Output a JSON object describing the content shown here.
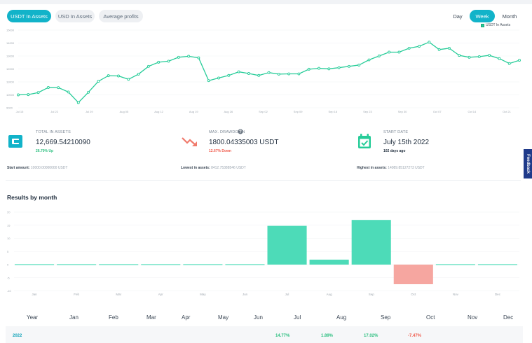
{
  "tabs": {
    "usdt_in_assets": "USDT In Assets",
    "usd_in_assets": "USD In Assets",
    "average_profits": "Average profits"
  },
  "periods": {
    "day": "Day",
    "week": "Week",
    "month": "Month"
  },
  "line_chart": {
    "legend": "USDT In Assets",
    "y_ticks": [
      "15000",
      "14000",
      "13000",
      "12000",
      "11000",
      "10000",
      "9000"
    ],
    "x_ticks": [
      "Jul 15",
      "Jul 22",
      "Jul 29",
      "Aug 05",
      "Aug 12",
      "Aug 19",
      "Aug 26",
      "Sep 02",
      "Sep 09",
      "Sep 16",
      "Sep 23",
      "Sep 30",
      "Oct 07",
      "Oct 14",
      "Oct 21"
    ]
  },
  "stats": {
    "total": {
      "label": "TOTAL IN ASSETS",
      "value": "12,669.54210090",
      "sub": "26.70% Up"
    },
    "drawdown": {
      "label": "MAX. DRAWDOWN",
      "value": "1800.04335003 USDT",
      "sub": "12.67% Down"
    },
    "start": {
      "label": "START DATE",
      "value": "July 15th 2022",
      "sub": "102 days ago"
    }
  },
  "footer": {
    "start_amount_label": "Start amount:",
    "start_amount_value": "10000.00000000 USDT",
    "lowest_label": "Lowest in assets:",
    "lowest_value": "8412.75388546 USDT",
    "highest_label": "Highest in assets:",
    "highest_value": "14089.85127273 USDT"
  },
  "monthly": {
    "title": "Results by month",
    "y_ticks": [
      "20",
      "15",
      "10",
      "5",
      "0",
      "-5",
      "-10"
    ],
    "months": [
      "Jan",
      "Feb",
      "Mar",
      "Apr",
      "May",
      "Jun",
      "Jul",
      "Aug",
      "Sep",
      "Oct",
      "Nov",
      "Dec"
    ]
  },
  "feedback": "Feedback",
  "table": {
    "year_header": "Year",
    "month_headers": [
      "Jan",
      "Feb",
      "Mar",
      "Apr",
      "May",
      "Jun",
      "Jul",
      "Aug",
      "Sep",
      "Oct",
      "Nov",
      "Dec"
    ],
    "row": {
      "year": "2022",
      "jul": "14.77%",
      "aug": "1.89%",
      "sep": "17.02%",
      "oct": "-7.47%"
    }
  },
  "colors": {
    "accent": "#12b3c9",
    "line": "#26cc98",
    "bar_pos": "#4ddbb8",
    "bar_neg": "#f6a6a0",
    "pos_text": "#2bbf7f",
    "neg_text": "#f05c4d"
  },
  "chart_data": [
    {
      "type": "line",
      "series": [
        {
          "name": "USDT In Assets",
          "values": [
            10000,
            10020,
            10180,
            10570,
            10560,
            10220,
            9400,
            10200,
            11050,
            11480,
            11460,
            11200,
            11600,
            12200,
            12520,
            12600,
            12900,
            12980,
            12860,
            11100,
            11300,
            11500,
            11780,
            11650,
            11500,
            11720,
            11600,
            11620,
            11620,
            11980,
            12050,
            12010,
            12100,
            12200,
            12300,
            12700,
            13000,
            13300,
            13300,
            13600,
            13750,
            14070,
            13500,
            13600,
            13050,
            12900,
            12950,
            13050,
            12800,
            12420,
            12670
          ]
        }
      ],
      "x_labels": [
        "Jul 15",
        "Jul 22",
        "Jul 29",
        "Aug 05",
        "Aug 12",
        "Aug 19",
        "Aug 26",
        "Sep 02",
        "Sep 09",
        "Sep 16",
        "Sep 23",
        "Sep 30",
        "Oct 07",
        "Oct 14",
        "Oct 21"
      ],
      "ylim": [
        9000,
        15000
      ],
      "grid": true,
      "legend": "top-right"
    },
    {
      "type": "bar",
      "title": "Results by month",
      "categories": [
        "Jan",
        "Feb",
        "Mar",
        "Apr",
        "May",
        "Jun",
        "Jul",
        "Aug",
        "Sep",
        "Oct",
        "Nov",
        "Dec"
      ],
      "values": [
        0,
        0,
        0,
        0,
        0,
        0,
        14.77,
        1.89,
        17.02,
        -7.47,
        0,
        0
      ],
      "ylim": [
        -10,
        20
      ],
      "grid": true
    }
  ]
}
